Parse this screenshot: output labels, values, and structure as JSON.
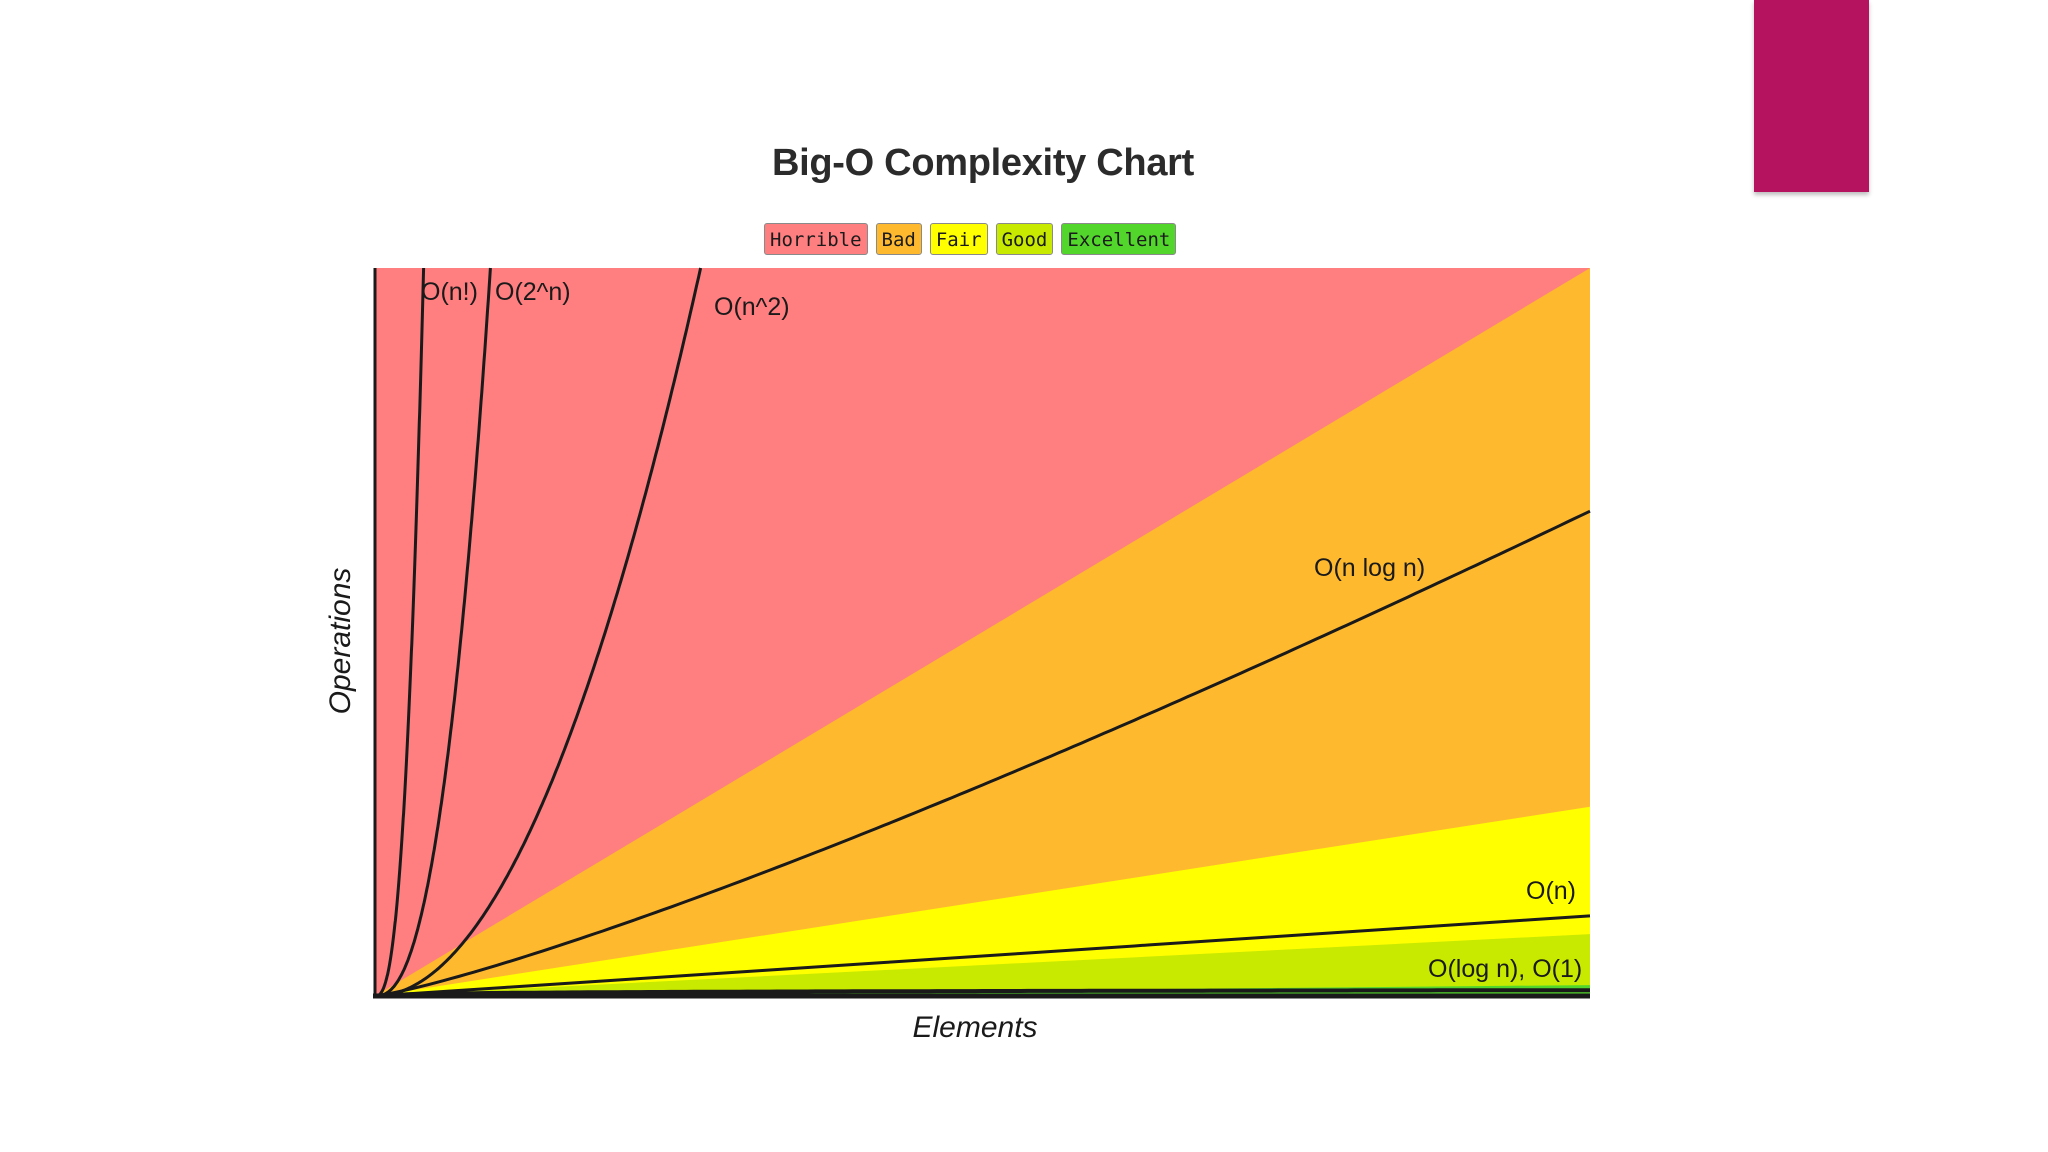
{
  "colors": {
    "accent": "#b5135f",
    "horrible": "#ff7e80",
    "bad": "#feb92f",
    "fair": "#ffff00",
    "good": "#c8ea00",
    "excellent": "#53d62c",
    "curve": "#1a1a1a"
  },
  "chart_data": {
    "type": "area",
    "title": "Big-O Complexity Chart",
    "xlabel": "Elements",
    "ylabel": "Operations",
    "legend_position": "top-center",
    "grid": false,
    "legend": [
      {
        "label": "Horrible",
        "color": "#ff7e80"
      },
      {
        "label": "Bad",
        "color": "#feb92f"
      },
      {
        "label": "Fair",
        "color": "#ffff00"
      },
      {
        "label": "Good",
        "color": "#c8ea00"
      },
      {
        "label": "Excellent",
        "color": "#53d62c"
      }
    ],
    "xlim": [
      0,
      100
    ],
    "ylim": [
      0,
      100
    ],
    "regions": [
      {
        "class": "Horrible",
        "upper_slope": null
      },
      {
        "class": "Bad",
        "upper_slope": 1.0
      },
      {
        "class": "Fair",
        "upper_slope": 0.26
      },
      {
        "class": "Good",
        "upper_slope": 0.085
      },
      {
        "class": "Excellent",
        "upper_slope": 0.015
      }
    ],
    "series": [
      {
        "name": "O(n!)",
        "reaches_top_at_x": 4.0
      },
      {
        "name": "O(2^n)",
        "reaches_top_at_x": 9.5
      },
      {
        "name": "O(n^2)",
        "reaches_top_at_x": 26.8
      },
      {
        "name": "O(n log n)",
        "y_at_x_max": 66.6
      },
      {
        "name": "O(n)",
        "y_at_x_max": 11
      },
      {
        "name": "O(log n), O(1)",
        "y_at_x_max": 0.8
      }
    ]
  }
}
